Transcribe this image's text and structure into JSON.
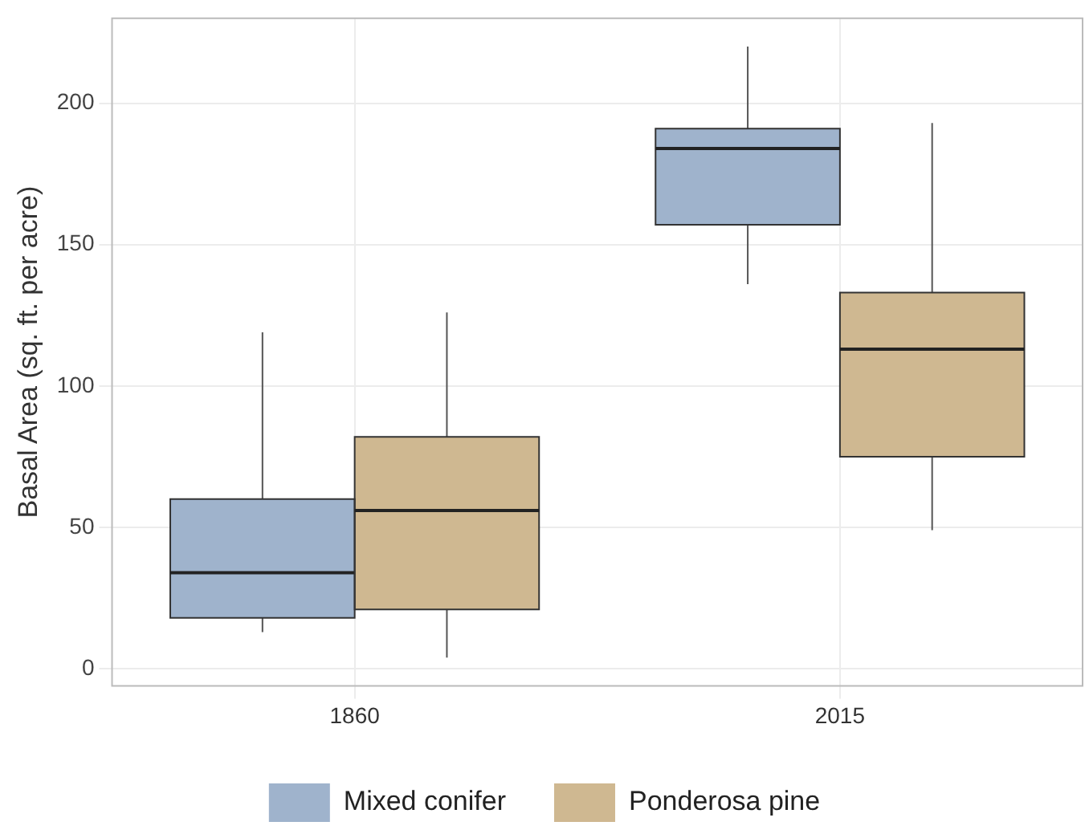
{
  "chart_data": {
    "type": "box",
    "ylabel": "Basal Area (sq. ft. per acre)",
    "categories": [
      "1860",
      "2015"
    ],
    "series": [
      {
        "name": "Mixed conifer",
        "color": "#9fb3cc",
        "boxes": [
          {
            "low": 13,
            "q1": 18,
            "median": 34,
            "q3": 60,
            "high": 119
          },
          {
            "low": 136,
            "q1": 157,
            "median": 184,
            "q3": 191,
            "high": 220
          }
        ]
      },
      {
        "name": "Ponderosa pine",
        "color": "#cfb891",
        "boxes": [
          {
            "low": 4,
            "q1": 21,
            "median": 56,
            "q3": 82,
            "high": 126
          },
          {
            "low": 49,
            "q1": 75,
            "median": 113,
            "q3": 133,
            "high": 193
          }
        ]
      }
    ],
    "ylim": [
      -6,
      230
    ],
    "yticks": [
      0,
      50,
      100,
      150,
      200
    ],
    "grid": true,
    "legend": "bottom"
  }
}
